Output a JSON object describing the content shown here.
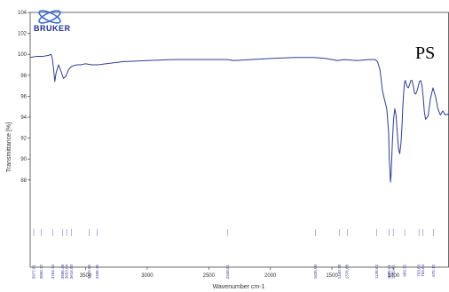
{
  "brand": {
    "text": "BRUKER"
  },
  "chart_data": {
    "type": "line",
    "sample_label": "PS",
    "xlabel": "Wavenumber cm-1",
    "ylabel": "Transmittance [%]",
    "xlim": [
      3950,
      550
    ],
    "ylim": [
      84,
      104
    ],
    "x_ticks": [
      3500,
      3000,
      2500,
      2000,
      1500,
      1000
    ],
    "y_ticks": [
      88,
      90,
      92,
      94,
      96,
      98,
      100,
      102,
      104
    ],
    "series": [
      {
        "color": "#2f3d8f",
        "x": [
          3950,
          3900,
          3850,
          3800,
          3780,
          3770,
          3760,
          3750,
          3740,
          3720,
          3700,
          3680,
          3660,
          3640,
          3620,
          3600,
          3570,
          3540,
          3500,
          3450,
          3400,
          3200,
          3000,
          2800,
          2600,
          2349,
          2300,
          2000,
          1800,
          1650,
          1550,
          1500,
          1460,
          1400,
          1300,
          1200,
          1150,
          1130,
          1110,
          1090,
          1070,
          1055,
          1040,
          1035,
          1025,
          1020,
          1010,
          1000,
          990,
          980,
          970,
          960,
          950,
          940,
          930,
          925,
          920,
          915,
          910,
          905,
          900,
          890,
          880,
          870,
          860,
          850,
          840,
          830,
          820,
          810,
          800,
          790,
          780,
          770,
          760,
          750,
          740,
          720,
          700,
          680,
          660,
          640,
          620,
          600,
          580,
          560,
          550
        ],
        "y": [
          99.7,
          99.8,
          99.8,
          99.9,
          100.0,
          99.6,
          98.6,
          97.4,
          98.2,
          99.0,
          98.4,
          97.7,
          97.9,
          98.5,
          98.8,
          98.9,
          99.0,
          99.0,
          99.1,
          99.0,
          99.0,
          99.3,
          99.4,
          99.5,
          99.5,
          99.5,
          99.4,
          99.6,
          99.7,
          99.7,
          99.6,
          99.5,
          99.4,
          99.5,
          99.4,
          99.5,
          99.5,
          99.3,
          98.5,
          96.5,
          95.5,
          94.8,
          92.5,
          90.0,
          87.8,
          88.5,
          91.5,
          93.8,
          94.8,
          94.2,
          92.5,
          91.0,
          90.5,
          91.5,
          93.5,
          95.0,
          96.0,
          96.8,
          97.4,
          97.5,
          97.3,
          96.9,
          96.8,
          97.1,
          97.5,
          97.5,
          97.0,
          96.3,
          96.2,
          96.5,
          96.9,
          97.4,
          97.5,
          97.1,
          96.0,
          94.5,
          93.8,
          94.1,
          95.8,
          96.8,
          96.0,
          94.8,
          94.2,
          94.6,
          94.2,
          94.3,
          94.2
        ]
      }
    ],
    "peak_labels": [
      "3977.81",
      "3860.72",
      "3764.74",
      "3686.48",
      "3653.84",
      "3616.50",
      "3472.65",
      "3406.75",
      "2348.81",
      "1635.00",
      "1440.78",
      "1376.68",
      "1138.62",
      "1035.81",
      "1002.51",
      "909.32",
      "793.83",
      "763.64",
      "675.12"
    ]
  }
}
